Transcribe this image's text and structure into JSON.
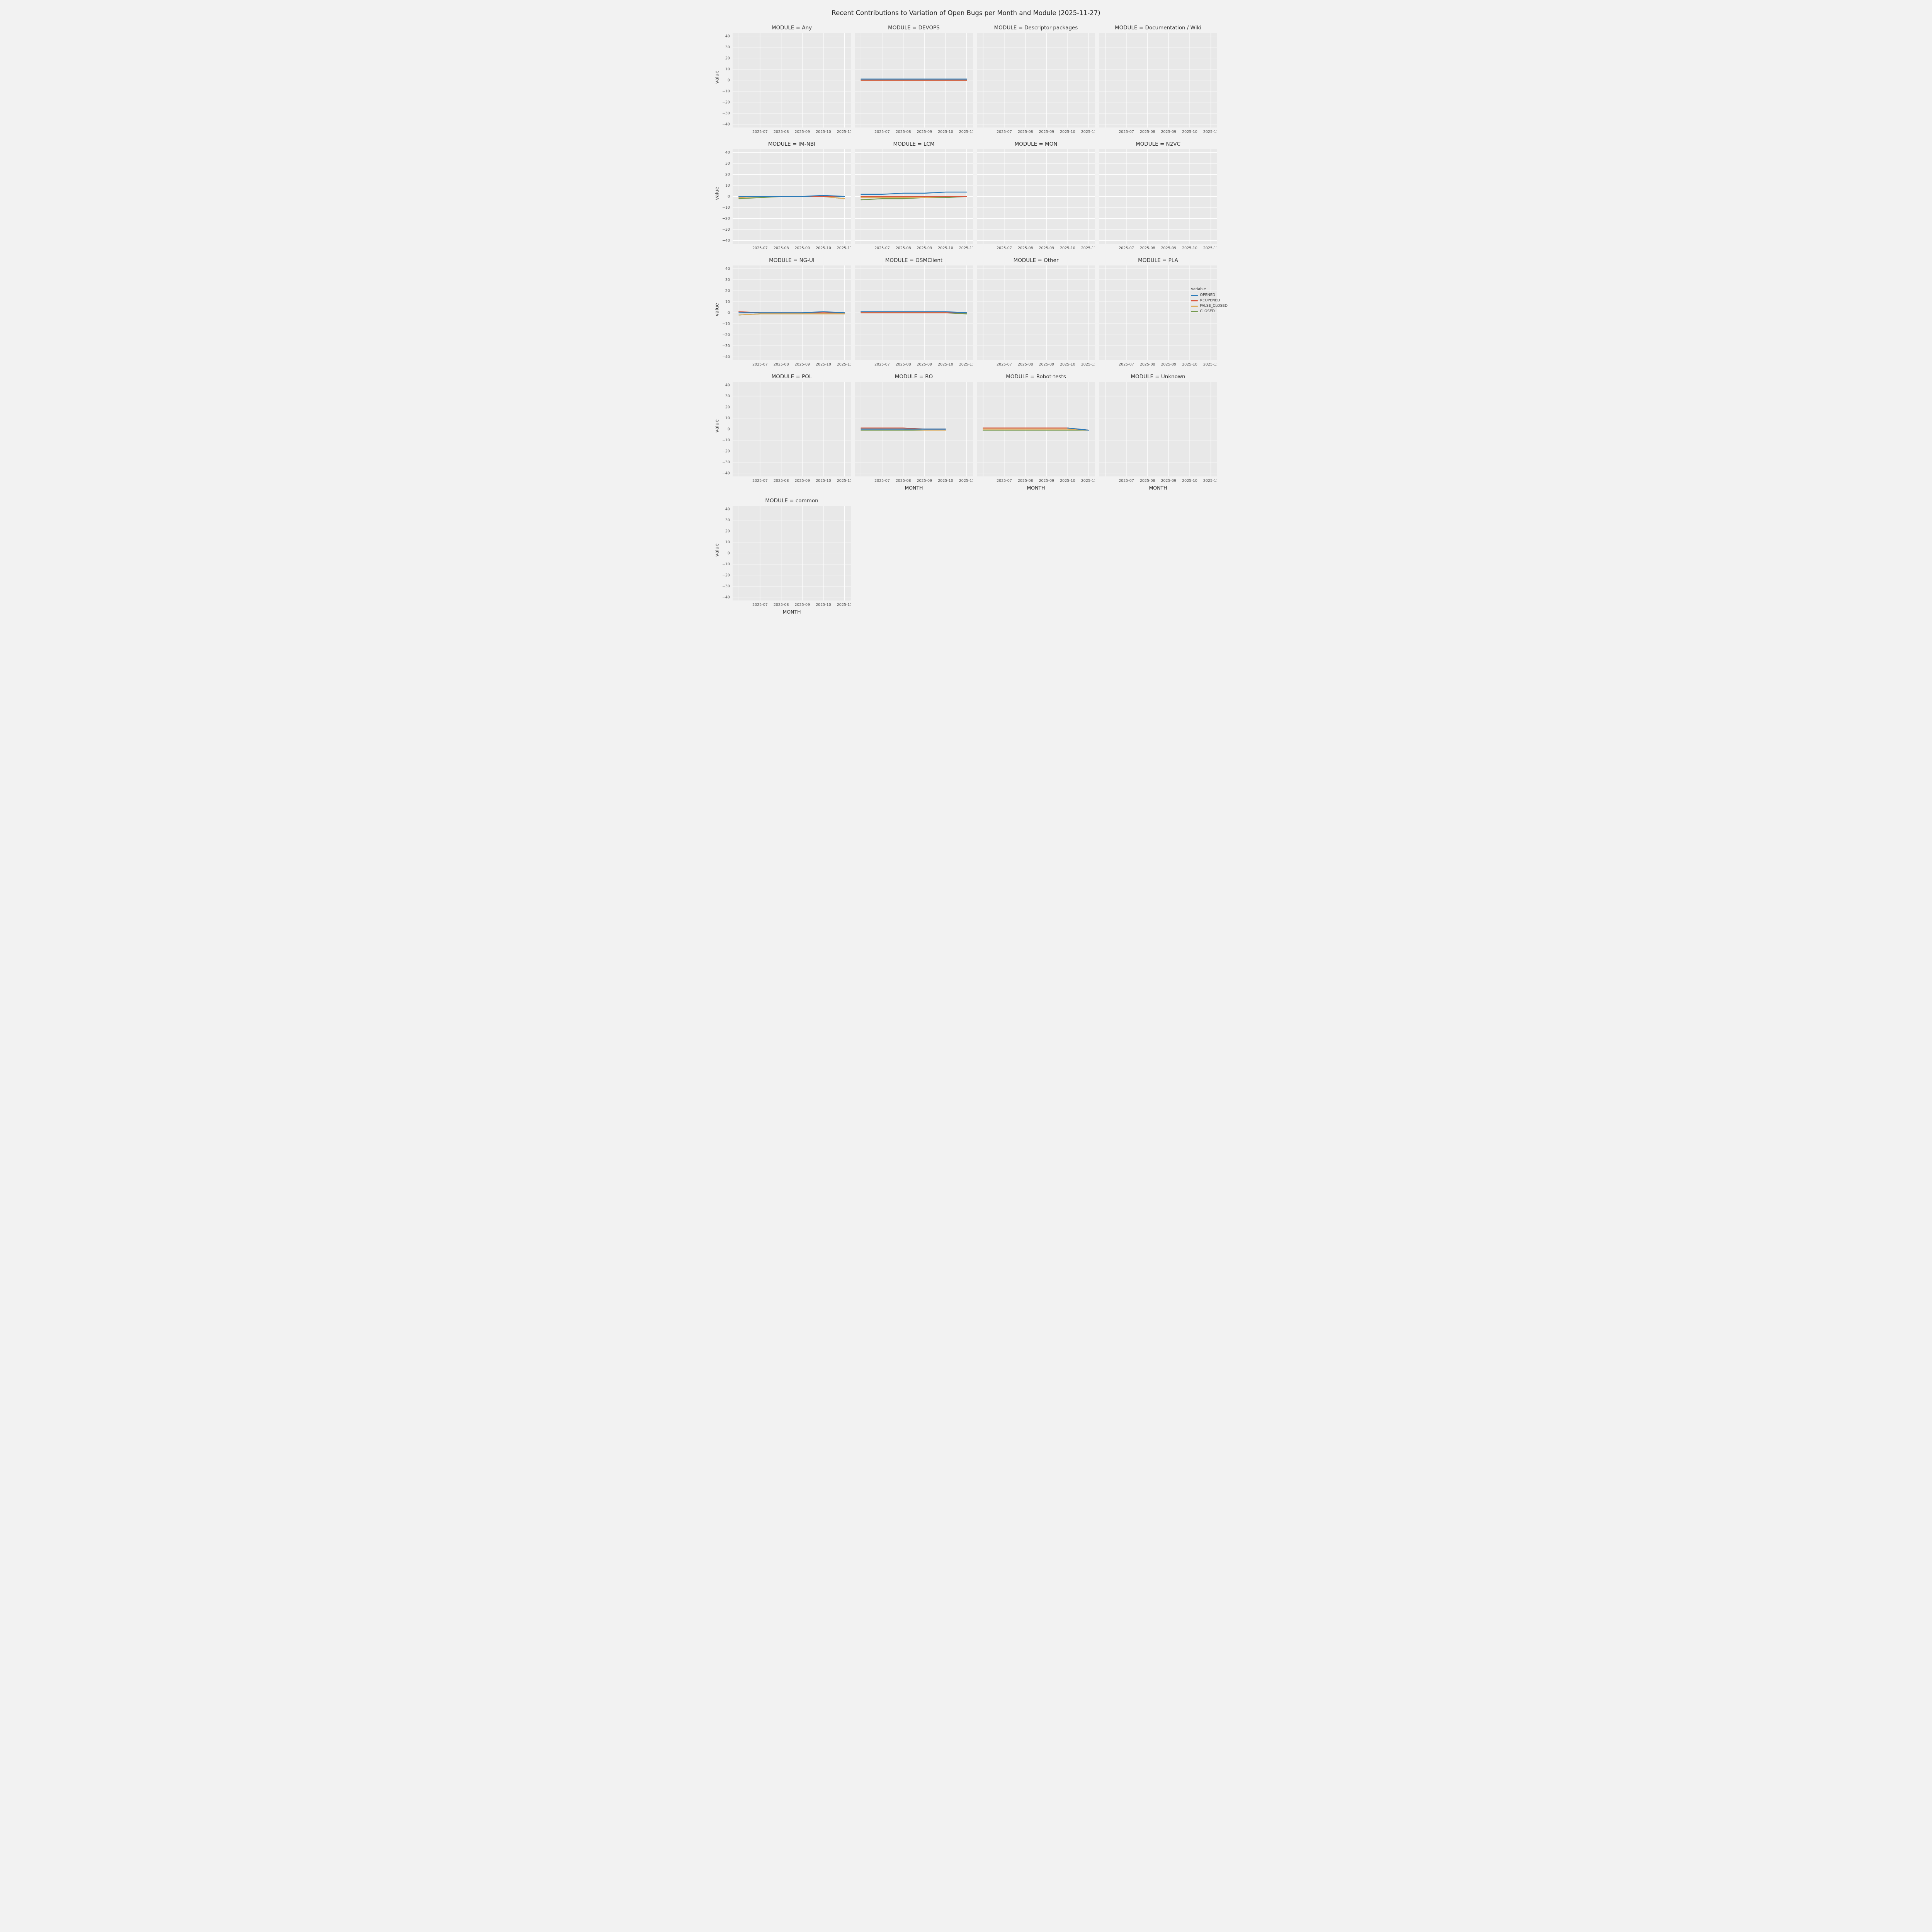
{
  "title": "Recent Contributions to Variation of Open Bugs per Month and Module (2025-11-27)",
  "legend": {
    "title": "variable",
    "entries": [
      {
        "label": "OPENED",
        "color": "#2a7ab9"
      },
      {
        "label": "REOPENED",
        "color": "#d6563e"
      },
      {
        "label": "FALSE_CLOSED",
        "color": "#ddab5c"
      },
      {
        "label": "CLOSED",
        "color": "#74994e"
      }
    ]
  },
  "axes": {
    "ylabel": "value",
    "xlabel": "MONTH",
    "ylim": [
      -43,
      43
    ],
    "yticks": [
      -40,
      -30,
      -20,
      -10,
      0,
      10,
      20,
      30,
      40
    ],
    "xticklabels": [
      "2025-07",
      "2025-08",
      "2025-09",
      "2025-10",
      "2025-11"
    ],
    "grid": true,
    "legend_position": "right"
  },
  "chart_data": {
    "type": "line",
    "x": [
      "2025-06",
      "2025-07",
      "2025-08",
      "2025-09",
      "2025-10",
      "2025-11"
    ],
    "facets": [
      {
        "module": "Any",
        "title": "MODULE = Any",
        "series": []
      },
      {
        "module": "DEVOPS",
        "title": "MODULE = DEVOPS",
        "series": [
          {
            "name": "OPENED",
            "values": [
              1,
              1,
              1,
              1,
              1,
              1
            ]
          },
          {
            "name": "REOPENED",
            "values": [
              0,
              0,
              0,
              0,
              0,
              0
            ]
          },
          {
            "name": "FALSE_CLOSED",
            "values": [
              0,
              0,
              0,
              0,
              0,
              0
            ]
          },
          {
            "name": "CLOSED",
            "values": [
              0,
              0,
              0,
              0,
              0,
              0
            ]
          }
        ]
      },
      {
        "module": "Descriptor-packages",
        "title": "MODULE = Descriptor-packages",
        "series": []
      },
      {
        "module": "Documentation / Wiki",
        "title": "MODULE = Documentation / Wiki",
        "series": []
      },
      {
        "module": "IM-NBI",
        "title": "MODULE = IM-NBI",
        "series": [
          {
            "name": "OPENED",
            "values": [
              0,
              0,
              0,
              0,
              1,
              0
            ]
          },
          {
            "name": "REOPENED",
            "values": [
              0,
              0,
              0,
              0,
              0,
              0
            ]
          },
          {
            "name": "FALSE_CLOSED",
            "values": [
              -1,
              0,
              0,
              0,
              0,
              -2
            ]
          },
          {
            "name": "CLOSED",
            "values": [
              -2,
              -1,
              0,
              0,
              0,
              -2
            ]
          }
        ]
      },
      {
        "module": "LCM",
        "title": "MODULE = LCM",
        "series": [
          {
            "name": "OPENED",
            "values": [
              2,
              2,
              3,
              3,
              4,
              4
            ]
          },
          {
            "name": "REOPENED",
            "values": [
              0,
              0,
              0,
              0,
              0,
              0
            ]
          },
          {
            "name": "FALSE_CLOSED",
            "values": [
              -1,
              -1,
              -1,
              -1,
              0,
              0
            ]
          },
          {
            "name": "CLOSED",
            "values": [
              -3,
              -2,
              -2,
              -1,
              -1,
              0
            ]
          }
        ]
      },
      {
        "module": "MON",
        "title": "MODULE = MON",
        "series": []
      },
      {
        "module": "N2VC",
        "title": "MODULE = N2VC",
        "series": []
      },
      {
        "module": "NG-UI",
        "title": "MODULE = NG-UI",
        "series": [
          {
            "name": "OPENED",
            "values": [
              0,
              0,
              0,
              0,
              1,
              0
            ]
          },
          {
            "name": "REOPENED",
            "values": [
              1,
              0,
              0,
              0,
              0,
              0
            ]
          },
          {
            "name": "FALSE_CLOSED",
            "values": [
              -2,
              -1,
              -1,
              -1,
              -1,
              -1
            ]
          },
          {
            "name": "CLOSED",
            "values": [
              -2,
              -1,
              -1,
              -1,
              -1,
              -1
            ]
          }
        ]
      },
      {
        "module": "OSMClient",
        "title": "MODULE = OSMClient",
        "series": [
          {
            "name": "OPENED",
            "values": [
              1,
              1,
              1,
              1,
              1,
              0
            ]
          },
          {
            "name": "REOPENED",
            "values": [
              0,
              0,
              0,
              0,
              0,
              0
            ]
          },
          {
            "name": "FALSE_CLOSED",
            "values": [
              0,
              0,
              0,
              0,
              0,
              0
            ]
          },
          {
            "name": "CLOSED",
            "values": [
              0,
              0,
              0,
              0,
              0,
              -1
            ]
          }
        ]
      },
      {
        "module": "Other",
        "title": "MODULE = Other",
        "series": []
      },
      {
        "module": "PLA",
        "title": "MODULE = PLA",
        "series": []
      },
      {
        "module": "POL",
        "title": "MODULE = POL",
        "series": []
      },
      {
        "module": "RO",
        "title": "MODULE = RO",
        "series": [
          {
            "name": "OPENED",
            "values": [
              0,
              0,
              0,
              0,
              0,
              null
            ]
          },
          {
            "name": "REOPENED",
            "values": [
              1,
              1,
              1,
              0,
              0,
              null
            ]
          },
          {
            "name": "FALSE_CLOSED",
            "values": [
              0,
              0,
              0,
              -1,
              -1,
              null
            ]
          },
          {
            "name": "CLOSED",
            "values": [
              -1,
              -1,
              -1,
              -1,
              -1,
              null
            ]
          }
        ]
      },
      {
        "module": "Robot-tests",
        "title": "MODULE = Robot-tests",
        "series": [
          {
            "name": "OPENED",
            "values": [
              null,
              null,
              null,
              null,
              1,
              -1
            ]
          },
          {
            "name": "REOPENED",
            "values": [
              1,
              1,
              1,
              1,
              1,
              -1
            ]
          },
          {
            "name": "FALSE_CLOSED",
            "values": [
              0,
              0,
              0,
              0,
              0,
              -1
            ]
          },
          {
            "name": "CLOSED",
            "values": [
              -1,
              -1,
              -1,
              -1,
              -1,
              -1
            ]
          }
        ]
      },
      {
        "module": "Unknown",
        "title": "MODULE = Unknown",
        "series": []
      },
      {
        "module": "common",
        "title": "MODULE = common",
        "series": []
      }
    ]
  }
}
